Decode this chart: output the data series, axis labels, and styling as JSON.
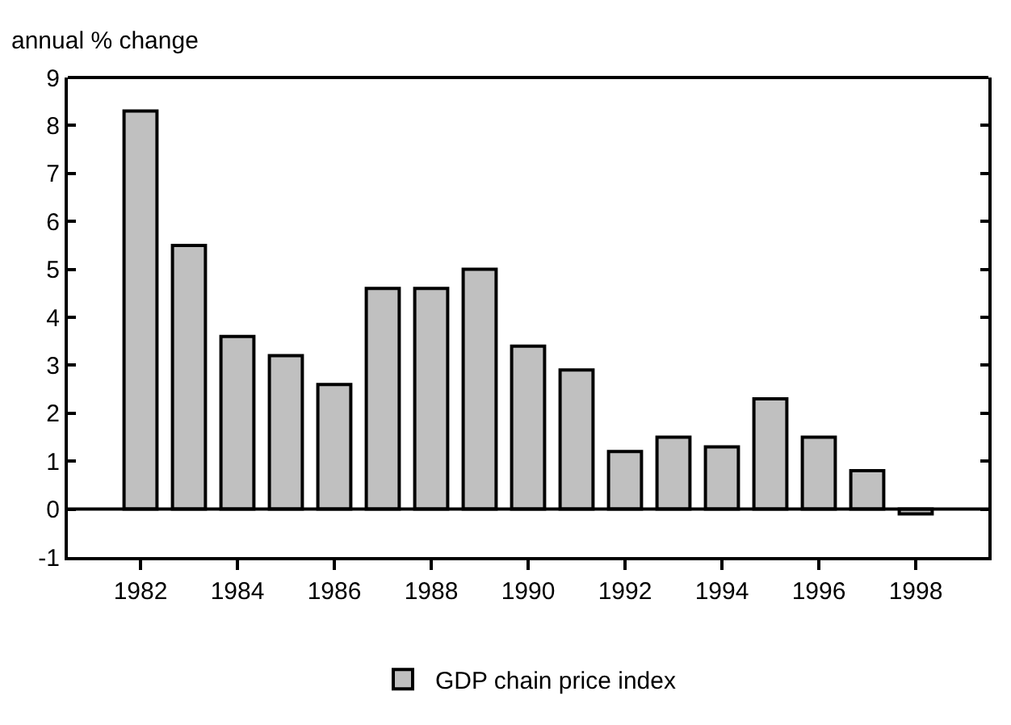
{
  "chart_data": {
    "type": "bar",
    "ylabel": "annual % change",
    "categories": [
      null,
      "1982",
      null,
      "1984",
      null,
      "1986",
      null,
      "1988",
      null,
      "1990",
      null,
      "1992",
      null,
      "1994",
      null,
      "1996",
      null,
      "1998",
      null
    ],
    "series": [
      {
        "name": "GDP chain price index",
        "color": "#c0c0c0",
        "values": [
          null,
          8.3,
          5.5,
          3.6,
          3.2,
          2.6,
          4.6,
          4.6,
          5.0,
          3.4,
          2.9,
          1.2,
          1.5,
          1.3,
          2.3,
          1.5,
          0.8,
          -0.1,
          null
        ]
      }
    ],
    "ylim": [
      -1,
      9
    ],
    "yticks": [
      -1,
      0,
      1,
      2,
      3,
      4,
      5,
      6,
      7,
      8,
      9
    ],
    "ref_lines": [
      {
        "axis": "y",
        "value": 0,
        "color": "#000000"
      }
    ],
    "legend": "bottom"
  }
}
